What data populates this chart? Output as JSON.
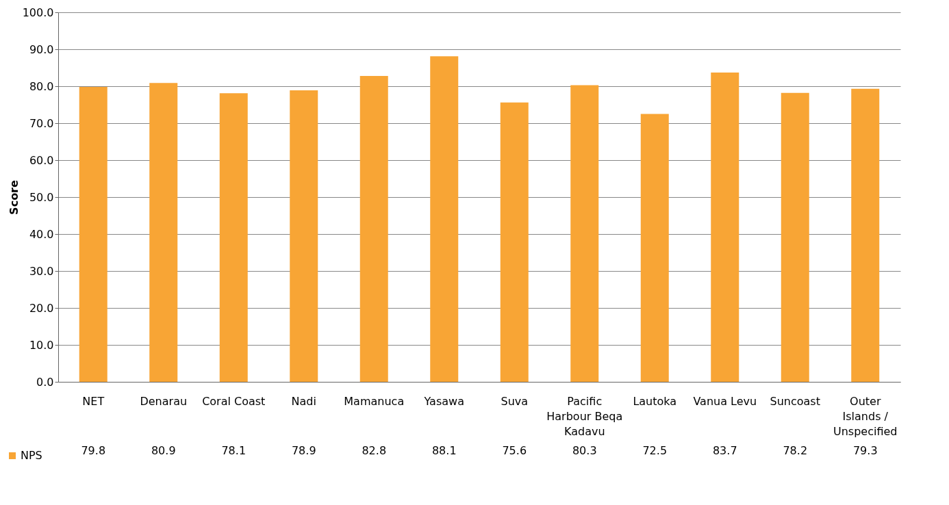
{
  "chart_data": {
    "type": "bar",
    "ylabel": "Score",
    "categories": [
      "NET",
      "Denarau",
      "Coral Coast",
      "Nadi",
      "Mamanuca",
      "Yasawa",
      "Suva",
      "Pacific Harbour Beqa Kadavu",
      "Lautoka",
      "Vanua Levu",
      "Suncoast",
      "Outer Islands / Unspecified"
    ],
    "series": [
      {
        "name": "NPS",
        "color": "#f8a535",
        "values": [
          79.8,
          80.9,
          78.1,
          78.9,
          82.8,
          88.1,
          75.6,
          80.3,
          72.5,
          83.7,
          78.2,
          79.3
        ]
      }
    ],
    "ylim": [
      0,
      100
    ],
    "yticks": [
      {
        "value": 0,
        "label": "0.0"
      },
      {
        "value": 10,
        "label": "10.0"
      },
      {
        "value": 20,
        "label": "20.0"
      },
      {
        "value": 30,
        "label": "30.0"
      },
      {
        "value": 40,
        "label": "40.0"
      },
      {
        "value": 50,
        "label": "50.0"
      },
      {
        "value": 60,
        "label": "60.0"
      },
      {
        "value": 70,
        "label": "70.0"
      },
      {
        "value": 80,
        "label": "80.0"
      },
      {
        "value": 90,
        "label": "90.0"
      },
      {
        "value": 100,
        "label": "100.0"
      }
    ],
    "grid": "y",
    "legend": "bottom left",
    "data_labels": true
  }
}
